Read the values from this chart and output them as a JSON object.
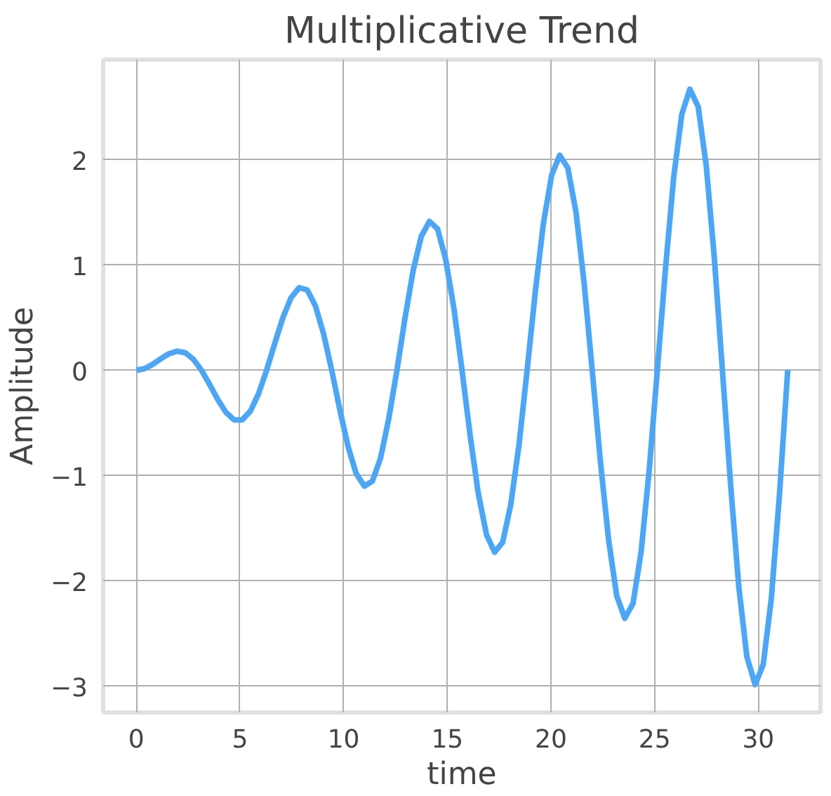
{
  "chart_data": {
    "type": "line",
    "title": "Multiplicative Trend",
    "xlabel": "time",
    "ylabel": "Amplitude",
    "xlim": [
      -1.6,
      33
    ],
    "ylim": [
      -3.25,
      2.95
    ],
    "xticks": [
      0,
      5,
      10,
      15,
      20,
      25,
      30
    ],
    "yticks": [
      -3,
      -2,
      -1,
      0,
      1,
      2
    ],
    "grid": true,
    "series": [
      {
        "color": "#4da6f5",
        "x": [
          0,
          0.393,
          0.785,
          1.178,
          1.571,
          1.963,
          2.356,
          2.749,
          3.142,
          3.534,
          3.927,
          4.32,
          4.712,
          5.105,
          5.498,
          5.89,
          6.283,
          6.676,
          7.069,
          7.461,
          7.854,
          8.247,
          8.639,
          9.032,
          9.425,
          9.817,
          10.21,
          10.6,
          11.0,
          11.39,
          11.78,
          12.17,
          12.57,
          12.96,
          13.35,
          13.74,
          14.14,
          14.53,
          14.92,
          15.32,
          15.71,
          16.1,
          16.49,
          16.89,
          17.28,
          17.67,
          18.06,
          18.46,
          18.85,
          19.24,
          19.63,
          20.03,
          20.42,
          20.81,
          21.21,
          21.6,
          21.99,
          22.38,
          22.78,
          23.17,
          23.56,
          23.96,
          24.35,
          24.74,
          25.13,
          25.53,
          25.92,
          26.31,
          26.7,
          27.1,
          27.49,
          27.88,
          28.27,
          28.67,
          29.06,
          29.45,
          29.85,
          30.24,
          30.63,
          31.02,
          31.42
        ],
        "values": [
          0,
          0.015,
          0.056,
          0.109,
          0.157,
          0.181,
          0.167,
          0.105,
          0,
          -0.135,
          -0.278,
          -0.399,
          -0.471,
          -0.472,
          -0.389,
          -0.225,
          0,
          0.255,
          0.5,
          0.689,
          0.785,
          0.762,
          0.611,
          0.346,
          0,
          -0.376,
          -0.722,
          -0.98,
          -1.1,
          -1.052,
          -0.833,
          -0.466,
          0,
          0.496,
          0.944,
          1.27,
          1.414,
          1.342,
          1.055,
          0.586,
          0,
          -0.616,
          -1.166,
          -1.561,
          -1.728,
          -1.633,
          -1.277,
          -0.707,
          0,
          0.737,
          1.388,
          1.851,
          2.042,
          1.923,
          1.5,
          0.827,
          0,
          -0.857,
          -1.611,
          -2.141,
          -2.356,
          -2.214,
          -1.722,
          -0.947,
          0,
          0.978,
          1.833,
          2.431,
          2.67,
          2.504,
          1.944,
          1.068,
          0,
          -1.098,
          -2.055,
          -2.721,
          -2.985,
          -2.794,
          -2.166,
          -1.188,
          0
        ]
      }
    ]
  }
}
